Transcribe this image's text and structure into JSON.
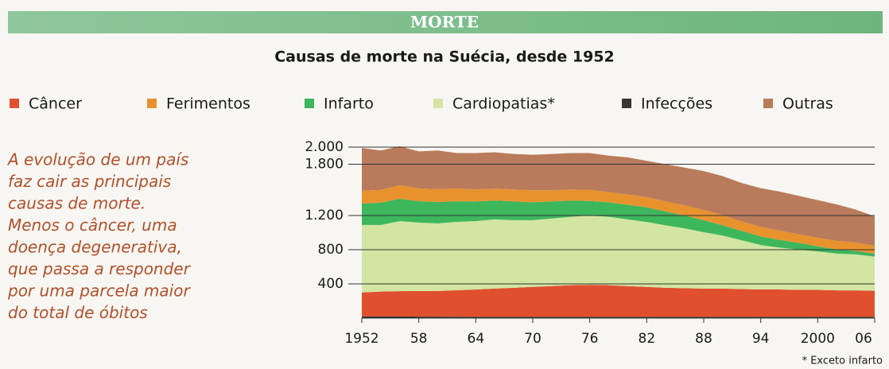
{
  "chart_data": {
    "type": "stacked_area",
    "header": "MORTE",
    "title": "Causas de morte na Suécia, desde 1952",
    "annotation": [
      "A evolução de um país",
      "faz cair as principais",
      "causas de morte.",
      "Menos o câncer, uma",
      "doença degenerativa,",
      "que passa a responder",
      "por uma parcela maior",
      "do total de óbitos"
    ],
    "footnote": "* Exceto infarto",
    "x": [
      1952,
      1954,
      1956,
      1958,
      1960,
      1962,
      1964,
      1966,
      1968,
      1970,
      1972,
      1974,
      1976,
      1978,
      1980,
      1982,
      1984,
      1986,
      1988,
      1990,
      1992,
      1994,
      1996,
      1998,
      2000,
      2002,
      2004,
      2006
    ],
    "series": [
      {
        "name": "Câncer",
        "color": "#e0502e",
        "values": [
          280,
          290,
          295,
          300,
          300,
          310,
          320,
          330,
          340,
          350,
          360,
          370,
          375,
          370,
          360,
          350,
          340,
          335,
          330,
          330,
          325,
          320,
          320,
          315,
          315,
          310,
          310,
          305
        ]
      },
      {
        "name": "Ferimentos",
        "color": "#e8922e",
        "values": [
          150,
          150,
          160,
          150,
          150,
          150,
          140,
          140,
          140,
          140,
          130,
          130,
          130,
          120,
          120,
          120,
          120,
          120,
          120,
          120,
          110,
          110,
          110,
          100,
          100,
          100,
          100,
          90
        ]
      },
      {
        "name": "Infarto",
        "color": "#3db65c",
        "values": [
          250,
          260,
          260,
          250,
          250,
          240,
          230,
          220,
          220,
          210,
          200,
          190,
          170,
          170,
          170,
          170,
          160,
          150,
          140,
          120,
          110,
          100,
          90,
          80,
          60,
          50,
          40,
          35
        ]
      },
      {
        "name": "Cardiopatias*",
        "color": "#d2e5a2",
        "values": [
          790,
          780,
          820,
          800,
          790,
          800,
          800,
          810,
          790,
          780,
          790,
          800,
          810,
          800,
          780,
          760,
          730,
          700,
          660,
          620,
          570,
          520,
          490,
          470,
          450,
          430,
          420,
          400
        ]
      },
      {
        "name": "Infecções",
        "color": "#3a3530",
        "values": [
          20,
          20,
          20,
          18,
          18,
          16,
          15,
          15,
          15,
          15,
          15,
          15,
          15,
          15,
          15,
          15,
          15,
          15,
          15,
          15,
          15,
          15,
          15,
          15,
          15,
          15,
          15,
          15
        ]
      },
      {
        "name": "Outras",
        "color": "#b97b5b",
        "values": [
          500,
          460,
          455,
          432,
          452,
          414,
          425,
          425,
          415,
          415,
          425,
          425,
          430,
          425,
          435,
          425,
          435,
          440,
          455,
          455,
          450,
          455,
          455,
          450,
          440,
          425,
          385,
          345
        ]
      }
    ],
    "xlim": [
      1952,
      2006
    ],
    "xticks": [
      1952,
      {
        "value": 1958,
        "label": "58"
      },
      {
        "value": 1964,
        "label": "64"
      },
      {
        "value": 1970,
        "label": "70"
      },
      {
        "value": 1976,
        "label": "76"
      },
      {
        "value": 1982,
        "label": "82"
      },
      {
        "value": 1988,
        "label": "88"
      },
      {
        "value": 1994,
        "label": "94"
      },
      2000,
      {
        "value": 2006,
        "label": "06"
      }
    ],
    "ylim": [
      0,
      2000
    ],
    "yticks": [
      400,
      800,
      {
        "value": 1200,
        "label": "1.200"
      },
      {
        "value": 1800,
        "label": "1.800"
      },
      {
        "value": 2000,
        "label": "2.000"
      }
    ],
    "grid": true
  }
}
